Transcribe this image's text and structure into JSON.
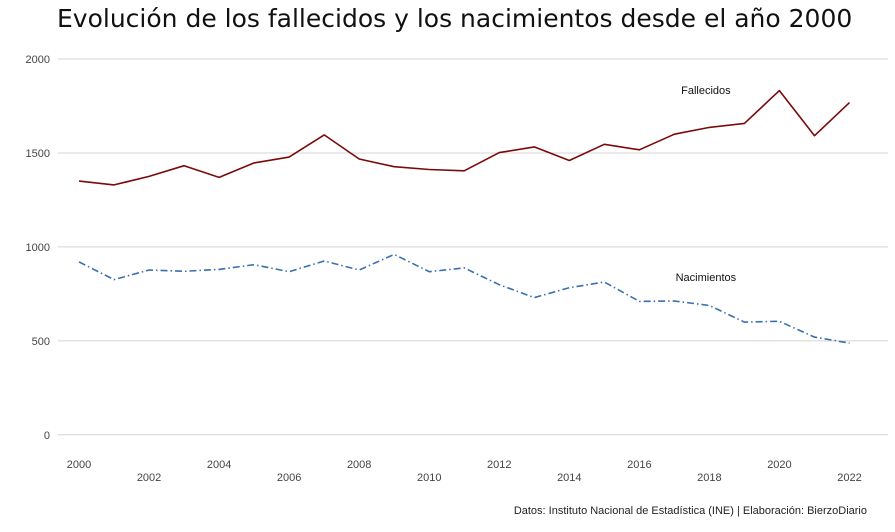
{
  "title": "Evolución de los fallecidos y los nacimientos desde el año 2000",
  "caption": "Datos: Instituto Nacional de Estadística (INE) | Elaboración: BierzoDiario",
  "chart_data": {
    "type": "line",
    "title": "Evolución de los fallecidos y los nacimientos desde el año 2000",
    "xlabel": "",
    "ylabel": "",
    "x": [
      2000,
      2001,
      2002,
      2003,
      2004,
      2005,
      2006,
      2007,
      2008,
      2009,
      2010,
      2011,
      2012,
      2013,
      2014,
      2015,
      2016,
      2017,
      2018,
      2019,
      2020,
      2021,
      2022
    ],
    "xticks": [
      2000,
      2002,
      2004,
      2006,
      2008,
      2010,
      2012,
      2014,
      2016,
      2018,
      2020,
      2022
    ],
    "xticks_top_row": [
      2000,
      2004,
      2008,
      2012,
      2016,
      2020
    ],
    "xlim": [
      1999.4,
      2023.1
    ],
    "ylim": [
      -65,
      2000
    ],
    "yticks": [
      0,
      500,
      1000,
      1500,
      2000
    ],
    "grid": true,
    "series": [
      {
        "name": "Fallecidos",
        "color": "#7a0a0a",
        "dash": "solid",
        "label_at": [
          2017.9,
          1835
        ],
        "values": [
          1350,
          1330,
          1375,
          1432,
          1370,
          1447,
          1478,
          1596,
          1468,
          1427,
          1412,
          1405,
          1502,
          1532,
          1460,
          1546,
          1517,
          1600,
          1636,
          1657,
          1832,
          1592,
          1768
        ]
      },
      {
        "name": "Nacimientos",
        "color": "#3a6fb0",
        "dash": "dashdot",
        "label_at": [
          2017.9,
          840
        ],
        "values": [
          920,
          826,
          877,
          870,
          880,
          905,
          868,
          925,
          877,
          960,
          868,
          888,
          799,
          730,
          783,
          813,
          710,
          712,
          688,
          600,
          604,
          520,
          488
        ]
      }
    ]
  }
}
